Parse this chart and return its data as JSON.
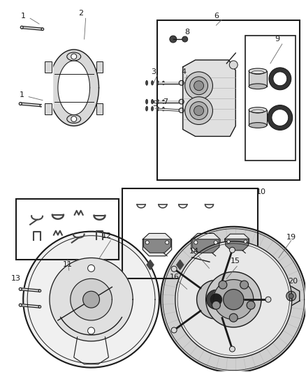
{
  "bg_color": "#ffffff",
  "fig_width": 4.38,
  "fig_height": 5.33,
  "dpi": 100,
  "line_color": "#1a1a1a",
  "light_gray": "#d8d8d8",
  "mid_gray": "#999999",
  "dark_gray": "#444444"
}
